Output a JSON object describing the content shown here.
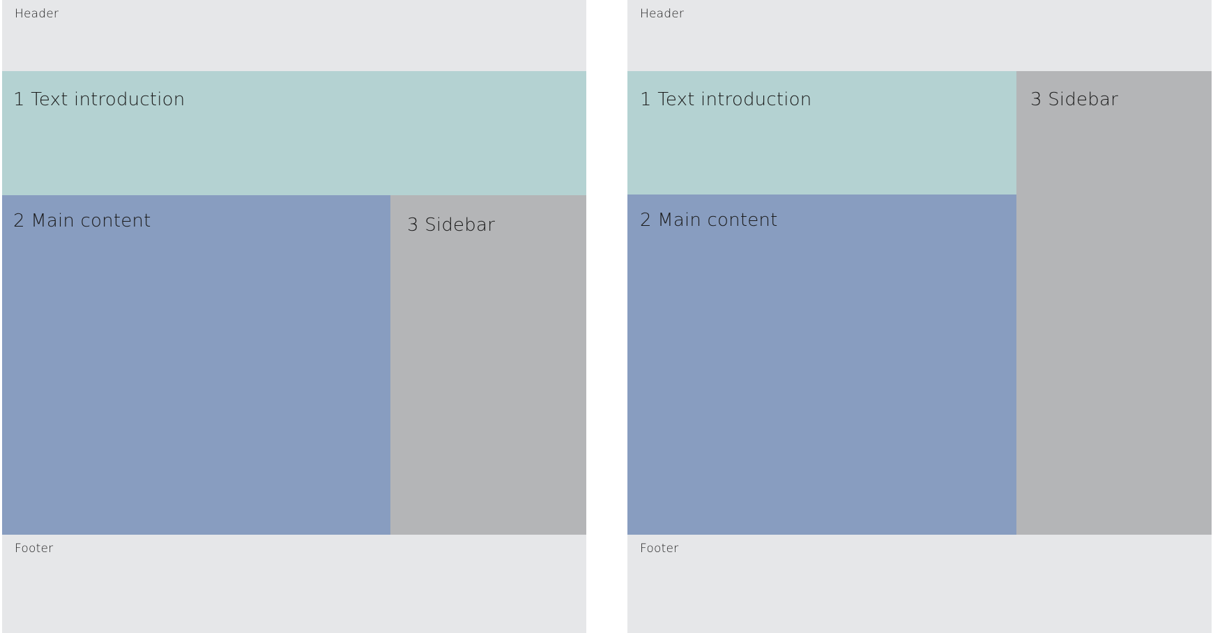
{
  "colors": {
    "header_footer": "#e6e7e9",
    "intro": "#b4d2d2",
    "main": "#889dc0",
    "sidebar": "#b4b5b7",
    "background": "#ffffff"
  },
  "left_layout": {
    "header": "Header",
    "intro": "1 Text introduction",
    "main": "2 Main content",
    "sidebar": "3 Sidebar",
    "footer": "Footer"
  },
  "right_layout": {
    "header": "Header",
    "intro": "1 Text introduction",
    "main": "2 Main content",
    "sidebar": "3 Sidebar",
    "footer": "Footer"
  }
}
